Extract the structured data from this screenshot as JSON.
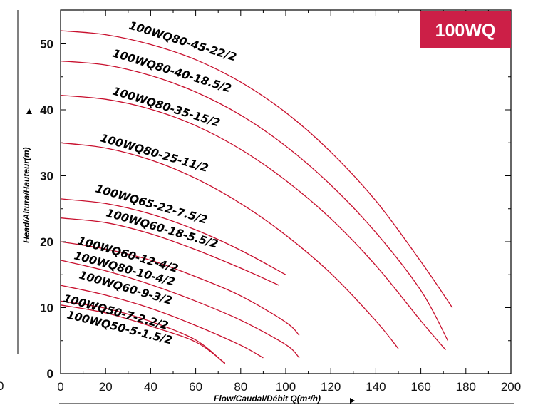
{
  "chart_data": {
    "type": "line",
    "title": "",
    "badge": "100WQ",
    "xlabel": "Flow/Caudal/Débit Q(m³/h)",
    "ylabel": "Head/Altura/Hauteur(m)",
    "xlim": [
      0,
      200
    ],
    "ylim": [
      0,
      55
    ],
    "x_ticks": [
      "0",
      "20",
      "40",
      "60",
      "80",
      "100",
      "120",
      "140",
      "160",
      "180",
      "200"
    ],
    "y_ticks": [
      {
        "value": 0,
        "label": "0"
      },
      {
        "value": 10,
        "label": "10"
      },
      {
        "value": 20,
        "label": "20"
      },
      {
        "value": 30,
        "label": "30"
      },
      {
        "value": 40,
        "label": "40"
      },
      {
        "value": 50,
        "label": "50"
      }
    ],
    "stray_label": "0",
    "grid": false,
    "colors": {
      "curve": "#c8102e",
      "badge": "#cc1f47",
      "text": "#000000"
    },
    "series": [
      {
        "name": "100WQ80-45-22/2",
        "x": [
          0,
          20,
          40,
          60,
          80,
          100,
          120,
          140,
          160,
          174
        ],
        "y": [
          52,
          51.4,
          49.9,
          47.6,
          44.2,
          39.6,
          33.6,
          26.2,
          17.0,
          10.0
        ]
      },
      {
        "name": "100WQ80-40-18.5/2",
        "x": [
          0,
          20,
          40,
          60,
          80,
          100,
          120,
          140,
          160,
          172
        ],
        "y": [
          47.4,
          46.8,
          45.2,
          42.7,
          39.2,
          34.5,
          28.6,
          21.4,
          12.6,
          5.0
        ]
      },
      {
        "name": "100WQ80-35-15/2",
        "x": [
          0,
          20,
          40,
          60,
          80,
          100,
          120,
          140,
          160,
          171
        ],
        "y": [
          42.2,
          41.6,
          40.1,
          37.6,
          34.0,
          29.3,
          23.5,
          16.4,
          8.0,
          3.6
        ]
      },
      {
        "name": "100WQ80-25-11/2",
        "x": [
          0,
          20,
          40,
          60,
          80,
          100,
          120,
          140,
          150
        ],
        "y": [
          35.0,
          34.2,
          32.4,
          29.6,
          25.8,
          21.0,
          15.2,
          8.0,
          3.8
        ]
      },
      {
        "name": "100WQ65-22-7.5/2",
        "x": [
          0,
          20,
          40,
          60,
          80,
          100
        ],
        "y": [
          26.5,
          25.8,
          24.2,
          21.8,
          18.7,
          15.0
        ]
      },
      {
        "name": "100WQ60-18-5.5/2",
        "x": [
          0,
          20,
          40,
          60,
          80,
          97
        ],
        "y": [
          23.6,
          22.9,
          21.2,
          18.8,
          16.0,
          13.4
        ]
      },
      {
        "name": "100WQ60-12-4/2",
        "x": [
          0,
          20,
          40,
          60,
          80,
          100,
          106
        ],
        "y": [
          20.0,
          18.9,
          17.2,
          14.7,
          11.8,
          7.8,
          5.8
        ]
      },
      {
        "name": "100WQ80-10-4/2",
        "x": [
          0,
          20,
          40,
          60,
          80,
          100,
          106
        ],
        "y": [
          17.2,
          15.6,
          13.5,
          11.0,
          8.1,
          4.4,
          2.4
        ]
      },
      {
        "name": "100WQ60-9-3/2",
        "x": [
          0,
          20,
          40,
          60,
          80,
          90
        ],
        "y": [
          13.4,
          11.9,
          9.9,
          7.3,
          4.3,
          2.4
        ]
      },
      {
        "name": "100WQ50-7-2.2/2",
        "x": [
          0,
          20,
          40,
          60,
          73
        ],
        "y": [
          11.0,
          9.9,
          7.9,
          5.1,
          1.5
        ]
      },
      {
        "name": "100WQ50-5-1.5/2",
        "x": [
          0,
          20,
          40,
          60,
          73
        ],
        "y": [
          10.4,
          9.2,
          7.2,
          4.8,
          1.6
        ]
      }
    ]
  }
}
